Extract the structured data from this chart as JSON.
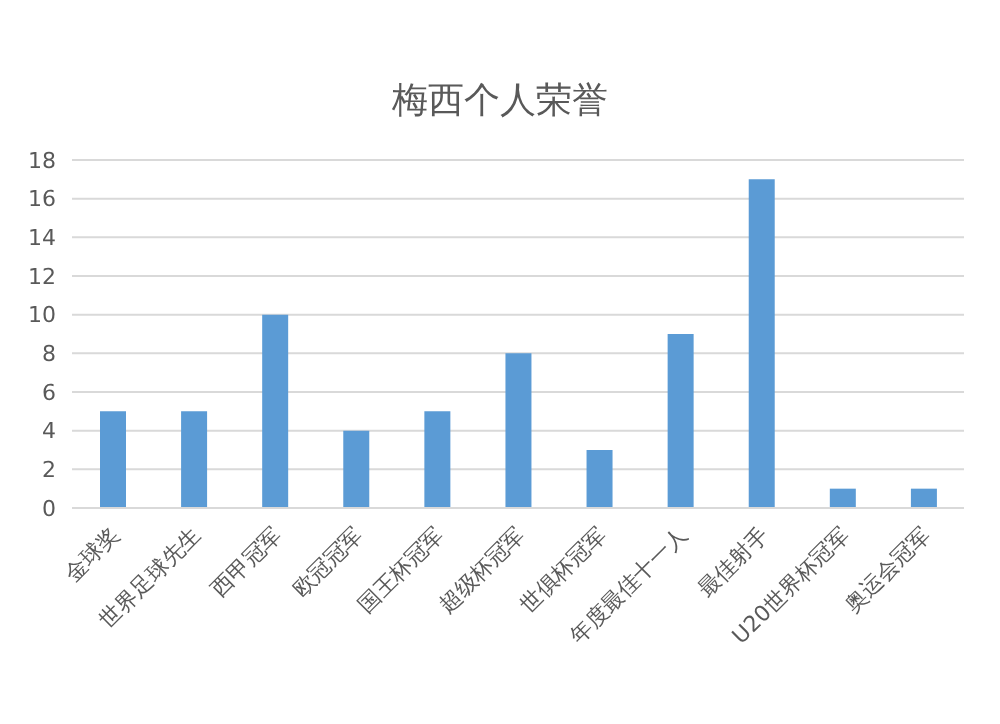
{
  "chart_data": {
    "type": "bar",
    "title": "梅西个人荣誉",
    "categories": [
      "金球奖",
      "世界足球先生",
      "西甲冠军",
      "欧冠冠军",
      "国王杯冠军",
      "超级杯冠军",
      "世俱杯冠军",
      "年度最佳十一人",
      "最佳射手",
      "U20世界杯冠军",
      "奥运会冠军"
    ],
    "values": [
      5,
      5,
      10,
      4,
      5,
      8,
      3,
      9,
      17,
      1,
      1
    ],
    "color": "#5b9bd5",
    "ylim": [
      0,
      18
    ],
    "yticks": [
      0,
      2,
      4,
      6,
      8,
      10,
      12,
      14,
      16,
      18
    ],
    "grid": "y"
  }
}
